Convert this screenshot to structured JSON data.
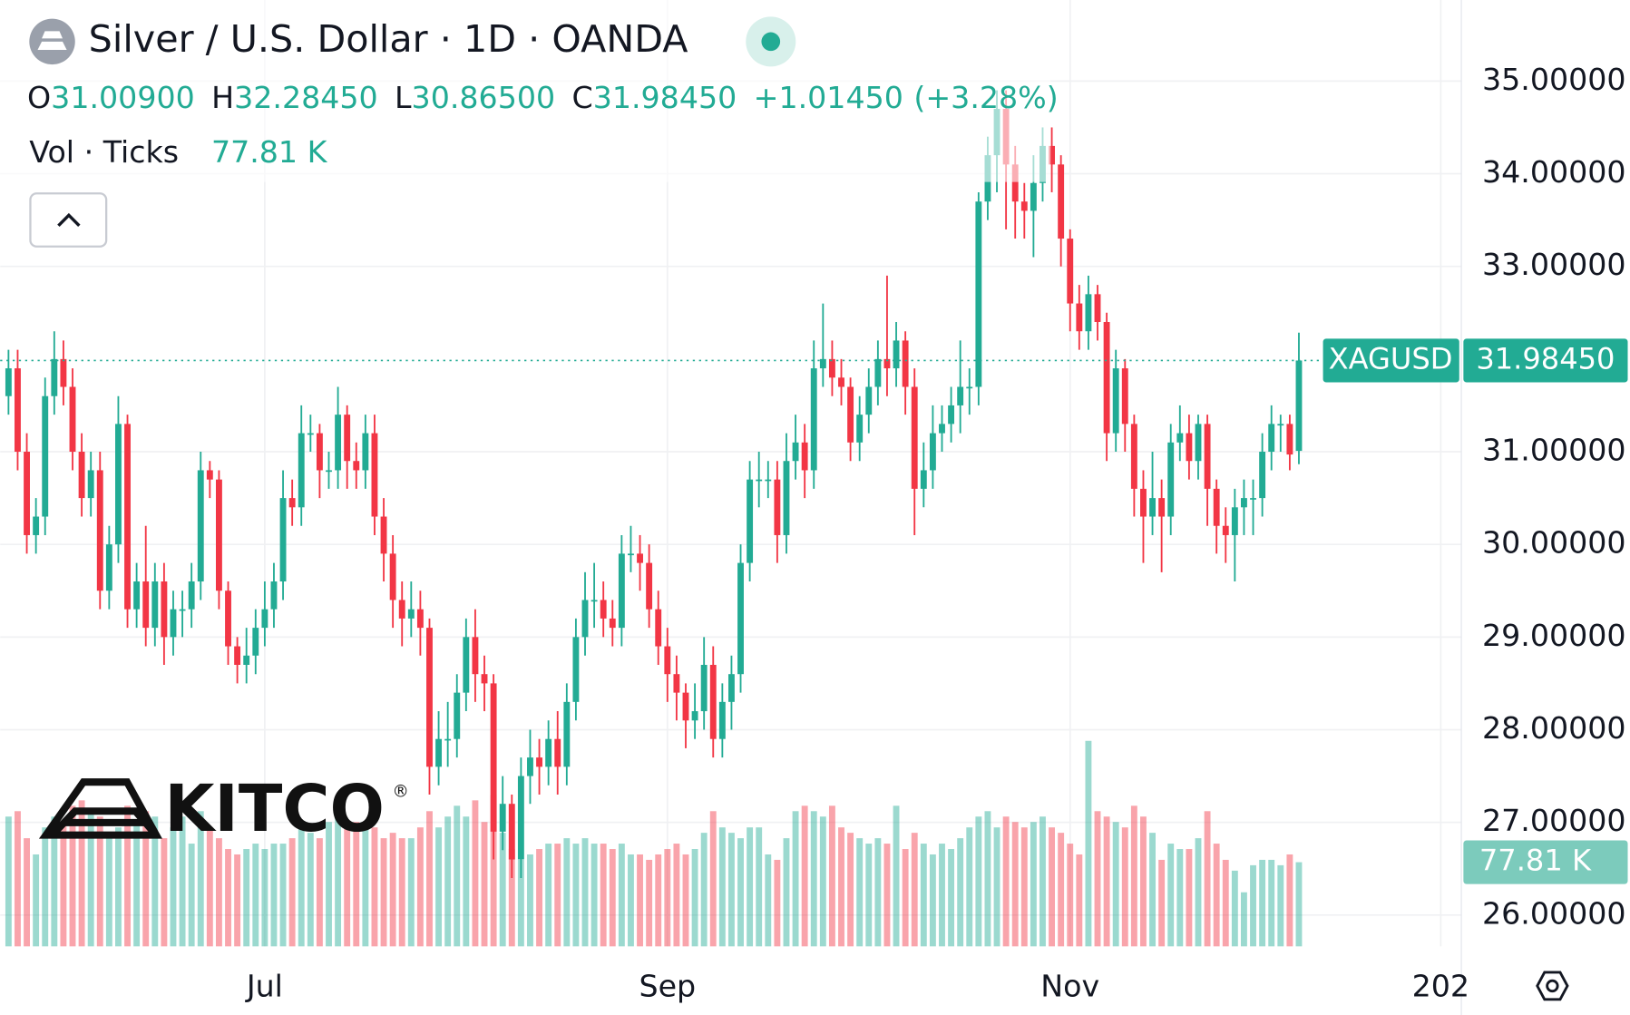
{
  "chart_data": {
    "type": "candlestick",
    "title": "Silver / U.S. Dollar · 1D · OANDA",
    "ohlc_legend": [
      {
        "key": "O",
        "value": "31.00900"
      },
      {
        "key": "H",
        "value": "32.28450"
      },
      {
        "key": "L",
        "value": "30.86500"
      },
      {
        "key": "C",
        "value": "31.98450"
      }
    ],
    "change": "+1.01450",
    "change_pct": "(+3.28%)",
    "volume_name": "Vol · Ticks",
    "last_volume": {
      "value": 77.81,
      "label": "77.81 K"
    },
    "last_price": {
      "symbol": "XAGUSD",
      "value": 31.9845,
      "label": "31.98450"
    },
    "logo": {
      "name": "KITCO",
      "mark": "®"
    },
    "colors": {
      "up": "#22ab94",
      "down": "#f23645"
    },
    "ylim": [
      25.662,
      35.875
    ],
    "yticks": [
      {
        "value": 26,
        "label": "26.00000"
      },
      {
        "value": 27,
        "label": "27.00000"
      },
      {
        "value": 28,
        "label": "28.00000"
      },
      {
        "value": 29,
        "label": "29.00000"
      },
      {
        "value": 30,
        "label": "30.00000"
      },
      {
        "value": 31,
        "label": "31.00000"
      },
      {
        "value": 33,
        "label": "33.00000"
      },
      {
        "value": 34,
        "label": "34.00000"
      },
      {
        "value": 35,
        "label": "35.00000"
      }
    ],
    "xticks": [
      {
        "value": 28,
        "label": "Jul"
      },
      {
        "value": 72,
        "label": "Sep"
      },
      {
        "value": 116,
        "label": "Nov"
      },
      {
        "value": 156.5,
        "label": "202"
      }
    ],
    "grid": true,
    "open": [
      31.6,
      31.9,
      31.0,
      30.1,
      30.3,
      31.6,
      32.0,
      31.7,
      31.0,
      30.5,
      30.8,
      29.5,
      30.0,
      31.3,
      29.3,
      29.6,
      29.1,
      29.6,
      29.0,
      29.3,
      29.3,
      29.6,
      30.8,
      30.7,
      29.5,
      28.9,
      28.7,
      28.8,
      29.1,
      29.3,
      29.6,
      30.5,
      30.4,
      31.2,
      31.2,
      30.8,
      30.8,
      31.4,
      30.9,
      30.8,
      31.2,
      30.3,
      29.9,
      29.4,
      29.2,
      29.3,
      29.1,
      27.6,
      27.9,
      27.9,
      28.4,
      29.0,
      28.6,
      28.5,
      26.9,
      27.2,
      26.6,
      27.5,
      27.7,
      27.6,
      27.9,
      27.6,
      28.3,
      29.0,
      29.4,
      29.4,
      29.2,
      29.1,
      29.9,
      29.9,
      29.8,
      29.3,
      28.9,
      28.6,
      28.4,
      28.1,
      28.2,
      28.7,
      27.9,
      28.3,
      28.6,
      29.8,
      30.7,
      30.7,
      30.7,
      30.1,
      30.9,
      31.1,
      30.8,
      31.9,
      32.0,
      31.8,
      31.7,
      31.1,
      31.4,
      31.7,
      32.0,
      31.9,
      32.2,
      31.7,
      30.6,
      30.8,
      31.2,
      31.3,
      31.5,
      31.7,
      31.7,
      33.7,
      34.2,
      34.7,
      34.1,
      33.7,
      33.6,
      33.9,
      34.3,
      34.1,
      33.3,
      32.6,
      32.3,
      32.7,
      32.4,
      31.2,
      31.9,
      31.3,
      30.6,
      30.3,
      30.5,
      30.3,
      31.1,
      31.2,
      30.9,
      31.3,
      30.6,
      30.2,
      30.1,
      30.4,
      30.5,
      30.5,
      31.0,
      31.3,
      31.3,
      31.009
    ],
    "high": [
      32.1,
      32.1,
      31.2,
      30.5,
      31.8,
      32.3,
      32.2,
      31.9,
      31.2,
      31.0,
      31.0,
      30.2,
      31.6,
      31.4,
      29.8,
      30.2,
      29.8,
      29.8,
      29.5,
      29.5,
      29.8,
      31.0,
      30.9,
      30.8,
      29.6,
      29.0,
      29.1,
      29.3,
      29.6,
      29.8,
      30.8,
      30.7,
      31.5,
      31.4,
      31.3,
      31.0,
      31.7,
      31.5,
      31.1,
      31.4,
      31.4,
      30.5,
      30.1,
      29.6,
      29.6,
      29.5,
      29.2,
      28.2,
      28.3,
      28.6,
      29.2,
      29.3,
      28.8,
      28.6,
      27.5,
      27.3,
      27.7,
      28.0,
      27.9,
      28.1,
      28.2,
      28.5,
      29.2,
      29.7,
      29.8,
      29.6,
      29.4,
      30.1,
      30.2,
      30.1,
      30.0,
      29.5,
      29.1,
      28.8,
      28.5,
      28.5,
      29.0,
      28.9,
      28.5,
      28.8,
      30.0,
      30.9,
      31.0,
      30.9,
      30.9,
      31.2,
      31.4,
      31.3,
      32.2,
      32.6,
      32.2,
      32.0,
      31.8,
      31.6,
      31.9,
      32.2,
      32.9,
      32.4,
      32.3,
      31.9,
      31.1,
      31.5,
      31.5,
      31.7,
      32.2,
      31.9,
      33.8,
      34.4,
      34.9,
      34.9,
      34.3,
      33.9,
      34.2,
      34.5,
      34.5,
      34.2,
      33.4,
      32.8,
      32.9,
      32.8,
      32.5,
      32.1,
      32.0,
      31.4,
      30.8,
      31.0,
      30.7,
      31.3,
      31.5,
      31.4,
      31.4,
      31.4,
      30.7,
      30.4,
      30.6,
      30.7,
      30.7,
      31.2,
      31.5,
      31.4,
      31.4,
      32.2845
    ],
    "low": [
      31.4,
      30.8,
      29.9,
      29.9,
      30.1,
      31.4,
      31.5,
      30.8,
      30.3,
      30.3,
      29.3,
      29.3,
      29.8,
      29.1,
      29.1,
      28.9,
      28.9,
      28.7,
      28.8,
      29.0,
      29.1,
      29.4,
      30.5,
      29.3,
      28.7,
      28.5,
      28.5,
      28.6,
      28.9,
      29.1,
      29.4,
      30.2,
      30.2,
      31.0,
      30.5,
      30.6,
      30.6,
      30.6,
      30.6,
      30.6,
      30.1,
      29.6,
      29.1,
      28.9,
      29.0,
      28.8,
      27.3,
      27.4,
      27.6,
      27.7,
      28.2,
      28.3,
      28.2,
      26.6,
      26.7,
      26.4,
      26.4,
      27.2,
      27.3,
      27.4,
      27.3,
      27.4,
      28.1,
      28.8,
      29.1,
      29.0,
      28.9,
      28.9,
      29.7,
      29.5,
      29.1,
      28.7,
      28.3,
      28.1,
      27.8,
      27.9,
      28.0,
      27.7,
      27.7,
      28.0,
      28.4,
      29.6,
      30.4,
      30.5,
      29.8,
      29.9,
      30.7,
      30.5,
      30.6,
      31.7,
      31.6,
      31.5,
      30.9,
      30.9,
      31.2,
      31.5,
      31.6,
      31.7,
      31.4,
      30.1,
      30.4,
      30.6,
      31.0,
      31.1,
      31.2,
      31.4,
      31.5,
      33.5,
      33.8,
      33.4,
      33.3,
      33.3,
      33.1,
      33.7,
      33.8,
      33.0,
      32.3,
      32.1,
      32.1,
      32.2,
      30.9,
      31.0,
      31.0,
      30.3,
      29.8,
      30.1,
      29.7,
      30.1,
      30.9,
      30.7,
      30.7,
      30.2,
      29.9,
      29.8,
      29.6,
      30.1,
      30.1,
      30.3,
      30.8,
      31.0,
      30.8,
      30.865
    ],
    "close": [
      31.9,
      31.0,
      30.1,
      30.3,
      31.6,
      32.0,
      31.7,
      31.0,
      30.5,
      30.8,
      29.5,
      30.0,
      31.3,
      29.3,
      29.6,
      29.1,
      29.6,
      29.0,
      29.3,
      29.3,
      29.6,
      30.8,
      30.7,
      29.5,
      28.9,
      28.7,
      28.8,
      29.1,
      29.3,
      29.6,
      30.5,
      30.4,
      31.2,
      31.2,
      30.8,
      30.8,
      31.4,
      30.9,
      30.8,
      31.2,
      30.3,
      29.9,
      29.4,
      29.2,
      29.3,
      29.1,
      27.6,
      27.9,
      27.9,
      28.4,
      29.0,
      28.6,
      28.5,
      26.9,
      27.2,
      26.6,
      27.5,
      27.7,
      27.6,
      27.9,
      27.6,
      28.3,
      29.0,
      29.4,
      29.4,
      29.2,
      29.1,
      29.9,
      29.9,
      29.8,
      29.3,
      28.9,
      28.6,
      28.4,
      28.1,
      28.2,
      28.7,
      27.9,
      28.3,
      28.6,
      29.8,
      30.7,
      30.7,
      30.7,
      30.1,
      30.9,
      31.1,
      30.8,
      31.9,
      32.0,
      31.8,
      31.7,
      31.1,
      31.4,
      31.7,
      32.0,
      31.9,
      32.2,
      31.7,
      30.6,
      30.8,
      31.2,
      31.3,
      31.5,
      31.7,
      31.7,
      33.7,
      34.2,
      34.7,
      34.1,
      33.7,
      33.6,
      33.9,
      34.3,
      34.1,
      33.3,
      32.6,
      32.3,
      32.7,
      32.4,
      31.2,
      31.9,
      31.3,
      30.6,
      30.3,
      30.5,
      30.3,
      31.1,
      31.2,
      30.9,
      31.3,
      30.6,
      30.2,
      30.1,
      30.4,
      30.5,
      30.5,
      31.0,
      31.3,
      31.3,
      30.97,
      31.9845
    ],
    "volume": [
      120,
      125,
      100,
      85,
      110,
      120,
      115,
      130,
      135,
      125,
      120,
      105,
      110,
      130,
      115,
      125,
      120,
      100,
      110,
      120,
      95,
      125,
      110,
      100,
      90,
      85,
      90,
      95,
      90,
      95,
      95,
      100,
      110,
      105,
      100,
      115,
      120,
      110,
      115,
      115,
      110,
      100,
      105,
      100,
      100,
      110,
      125,
      110,
      120,
      130,
      120,
      135,
      115,
      140,
      105,
      90,
      80,
      85,
      90,
      95,
      95,
      100,
      95,
      100,
      95,
      95,
      90,
      95,
      85,
      85,
      80,
      85,
      90,
      95,
      85,
      90,
      105,
      125,
      110,
      105,
      100,
      110,
      110,
      85,
      80,
      100,
      125,
      130,
      125,
      120,
      130,
      110,
      105,
      100,
      95,
      100,
      95,
      130,
      90,
      105,
      95,
      85,
      95,
      90,
      100,
      110,
      120,
      125,
      110,
      120,
      115,
      110,
      115,
      120,
      110,
      105,
      95,
      85,
      190,
      125,
      120,
      115,
      110,
      130,
      120,
      105,
      80,
      95,
      90,
      90,
      100,
      125,
      95,
      80,
      70,
      50,
      75,
      80,
      80,
      75,
      85,
      77.81
    ]
  }
}
